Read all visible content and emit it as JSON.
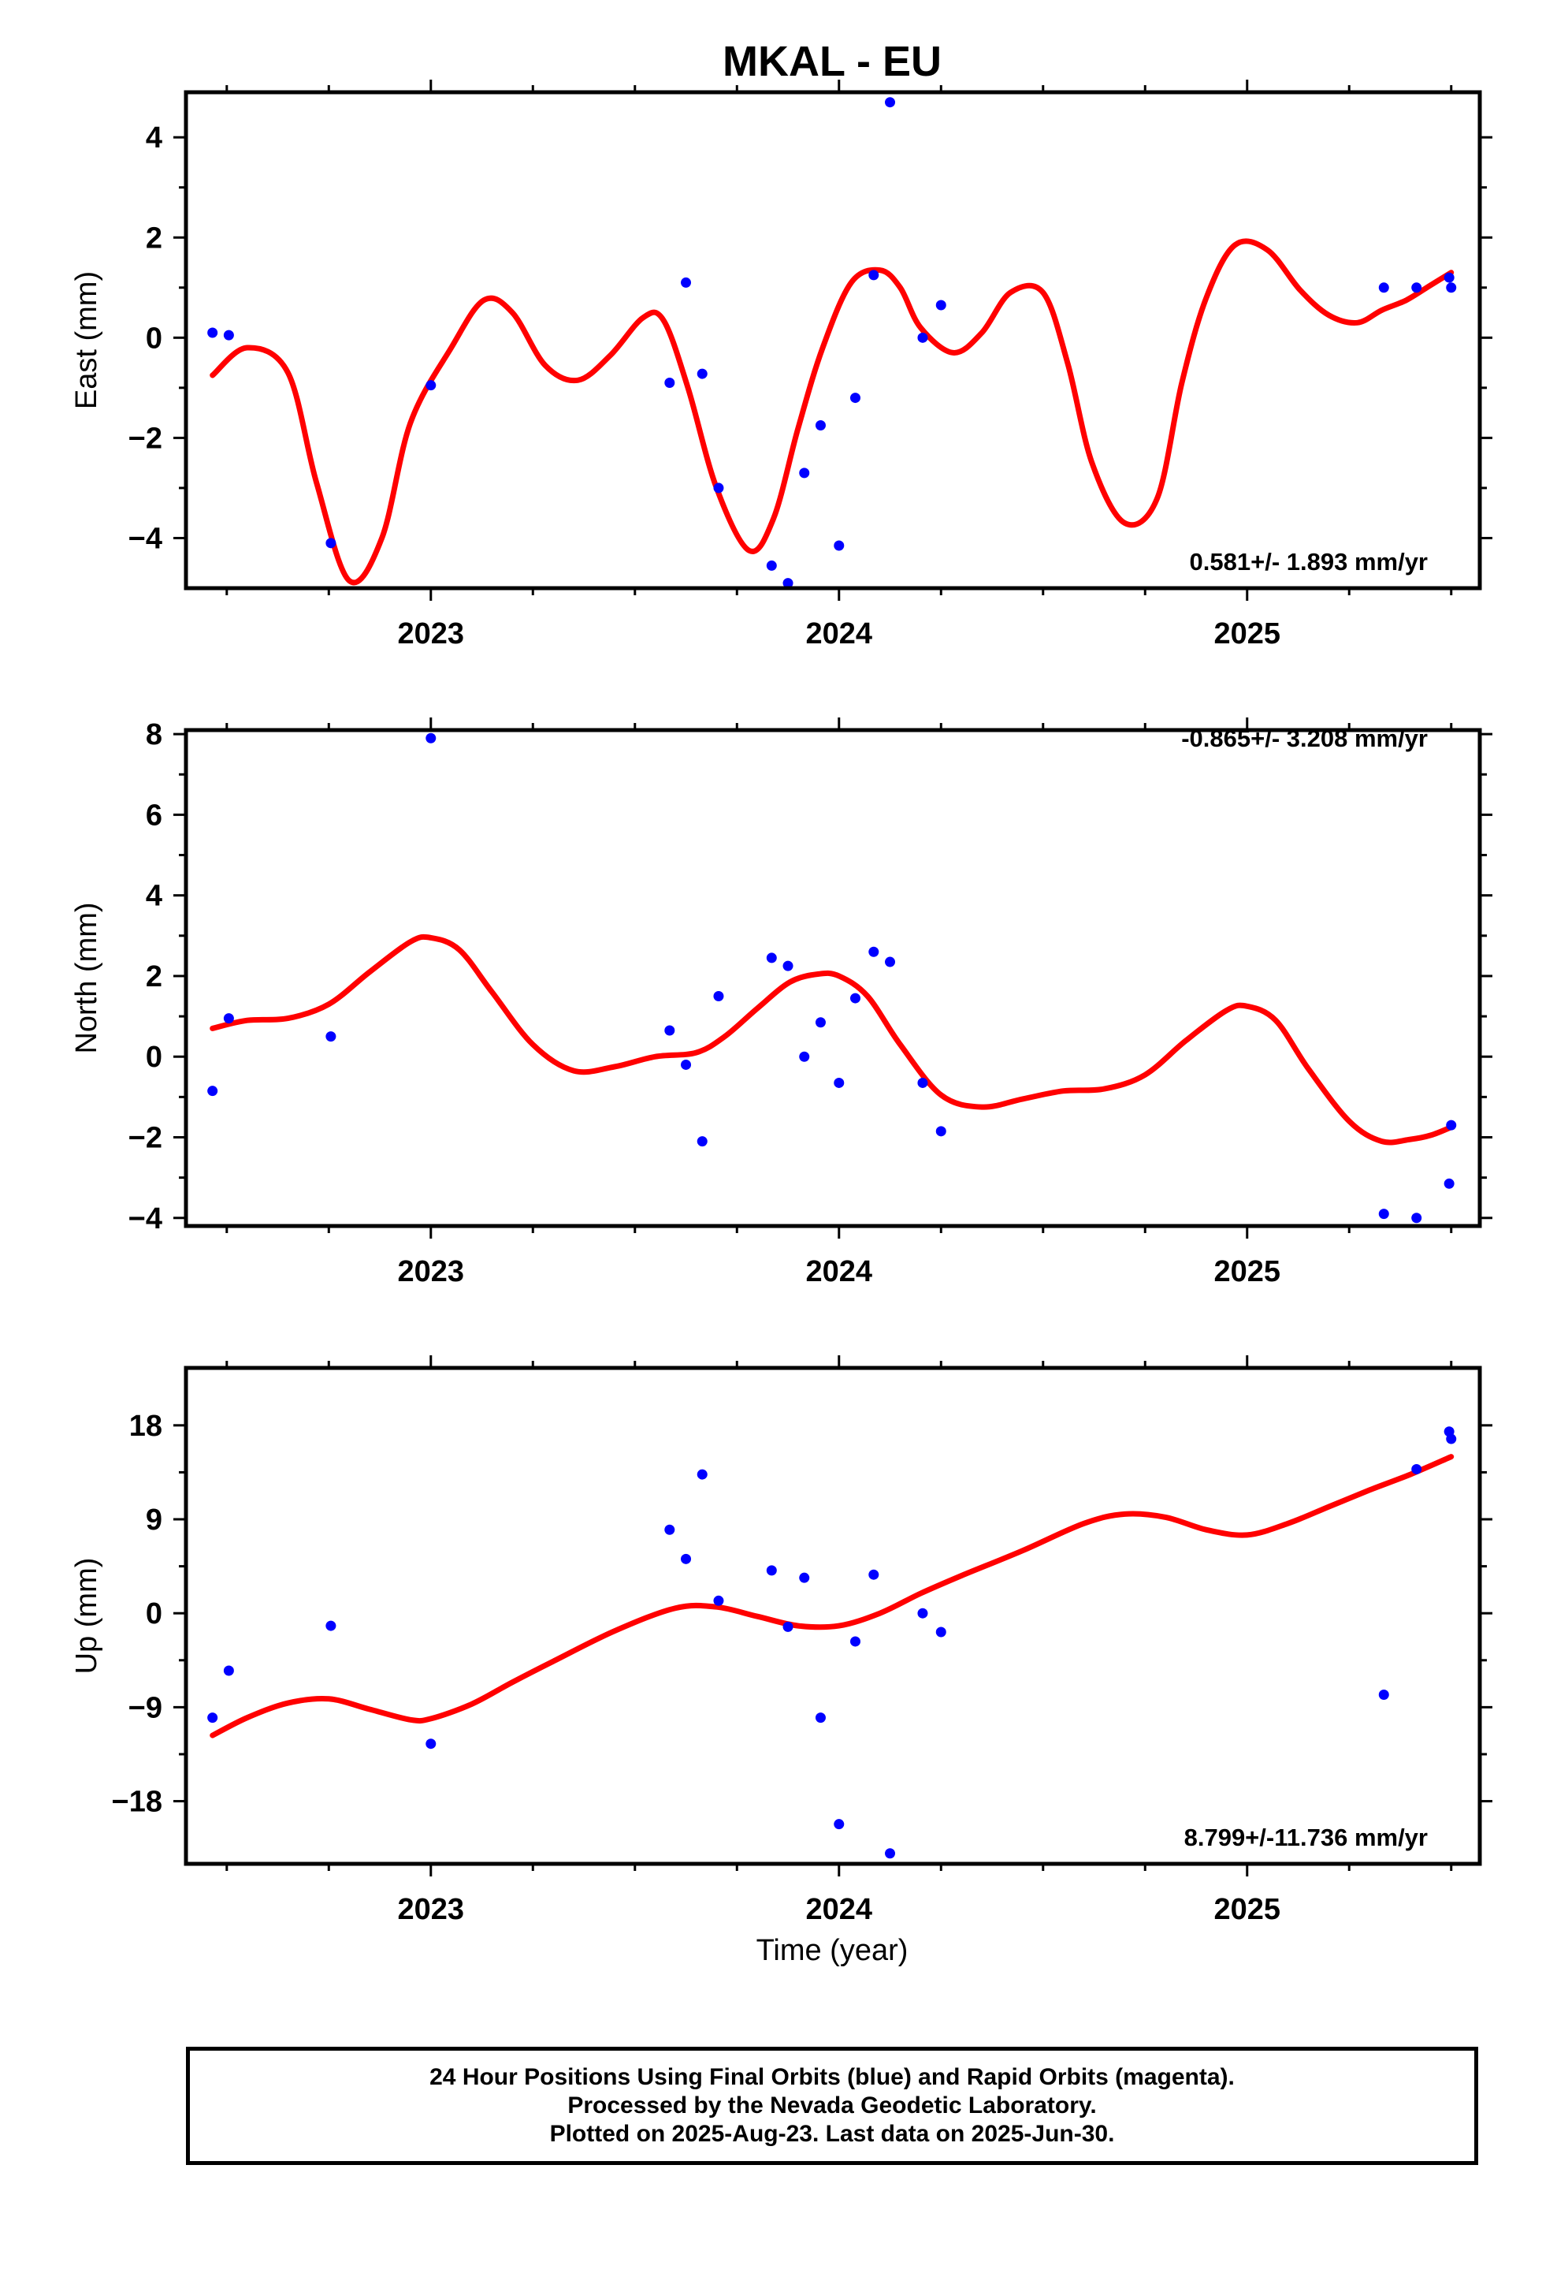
{
  "title": "MKAL - EU",
  "xlabel": "Time (year)",
  "footer": {
    "line1": "24 Hour Positions Using Final Orbits (blue) and Rapid Orbits (magenta).",
    "line2": "Processed by the Nevada Geodetic Laboratory.",
    "line3": "Plotted on 2025-Aug-23. Last data on 2025-Jun-30."
  },
  "colors": {
    "points": "#0000ff",
    "fit": "#ff0000",
    "frame": "#000000"
  },
  "chart_data": [
    {
      "type": "scatter",
      "ylabel": "East (mm)",
      "rate": "0.581+/- 1.893 mm/yr",
      "xlim": [
        2022.4,
        2025.57
      ],
      "ylim": [
        -5.0,
        4.9
      ],
      "yticks": [
        -4,
        -2,
        0,
        2,
        4
      ],
      "xticks": [
        2023,
        2024,
        2025
      ],
      "points": {
        "x": [
          2022.465,
          2022.505,
          2022.755,
          2023.0,
          2023.585,
          2023.625,
          2023.665,
          2023.705,
          2023.835,
          2023.875,
          2023.915,
          2023.955,
          2024.0,
          2024.04,
          2024.085,
          2024.125,
          2024.205,
          2024.25,
          2025.335,
          2025.415,
          2025.495,
          2025.5
        ],
        "y": [
          0.1,
          0.05,
          -4.1,
          -0.95,
          -0.9,
          1.1,
          -0.72,
          -3.0,
          -4.55,
          -4.9,
          -2.7,
          -1.75,
          -4.15,
          -1.2,
          1.25,
          4.7,
          0.0,
          0.65,
          1.0,
          1.0,
          1.2,
          1.0
        ]
      },
      "fit": {
        "x": [
          2022.465,
          2022.55,
          2022.65,
          2022.72,
          2022.8,
          2022.88,
          2022.95,
          2023.05,
          2023.13,
          2023.2,
          2023.28,
          2023.36,
          2023.44,
          2023.52,
          2023.57,
          2023.63,
          2023.7,
          2023.78,
          2023.84,
          2023.9,
          2023.96,
          2024.03,
          2024.1,
          2024.15,
          2024.2,
          2024.28,
          2024.35,
          2024.42,
          2024.5,
          2024.56,
          2024.62,
          2024.7,
          2024.78,
          2024.84,
          2024.9,
          2024.97,
          2025.05,
          2025.13,
          2025.2,
          2025.27,
          2025.33,
          2025.39,
          2025.45,
          2025.5
        ],
        "y": [
          -0.75,
          -0.2,
          -0.7,
          -2.9,
          -4.85,
          -4.0,
          -1.7,
          -0.2,
          0.75,
          0.5,
          -0.55,
          -0.85,
          -0.35,
          0.4,
          0.35,
          -1.0,
          -3.0,
          -4.25,
          -3.6,
          -1.8,
          -0.2,
          1.1,
          1.35,
          1.0,
          0.2,
          -0.3,
          0.1,
          0.9,
          0.9,
          -0.5,
          -2.5,
          -3.7,
          -3.2,
          -0.9,
          0.8,
          1.85,
          1.75,
          0.95,
          0.45,
          0.3,
          0.55,
          0.75,
          1.05,
          1.3
        ]
      }
    },
    {
      "type": "scatter",
      "ylabel": "North (mm)",
      "rate": "-0.865+/- 3.208 mm/yr",
      "xlim": [
        2022.4,
        2025.57
      ],
      "ylim": [
        -4.2,
        8.1
      ],
      "yticks": [
        -4,
        -2,
        0,
        2,
        4,
        6,
        8
      ],
      "xticks": [
        2023,
        2024,
        2025
      ],
      "points": {
        "x": [
          2022.465,
          2022.505,
          2022.755,
          2023.0,
          2023.585,
          2023.625,
          2023.665,
          2023.705,
          2023.835,
          2023.875,
          2023.915,
          2023.955,
          2024.0,
          2024.04,
          2024.085,
          2024.125,
          2024.205,
          2024.25,
          2025.335,
          2025.415,
          2025.495,
          2025.5
        ],
        "y": [
          -0.85,
          0.95,
          0.5,
          7.9,
          0.65,
          -0.2,
          -2.1,
          1.5,
          2.45,
          2.25,
          0.0,
          0.85,
          -0.65,
          1.45,
          2.6,
          2.35,
          -0.65,
          -1.85,
          -3.9,
          -4.0,
          -3.15,
          -1.7
        ]
      },
      "fit": {
        "x": [
          2022.465,
          2022.55,
          2022.65,
          2022.75,
          2022.85,
          2022.95,
          2023.0,
          2023.07,
          2023.15,
          2023.25,
          2023.35,
          2023.45,
          2023.55,
          2023.65,
          2023.72,
          2023.8,
          2023.88,
          2023.95,
          2024.0,
          2024.07,
          2024.15,
          2024.25,
          2024.35,
          2024.45,
          2024.55,
          2024.65,
          2024.75,
          2024.85,
          2024.95,
          2025.0,
          2025.07,
          2025.15,
          2025.25,
          2025.33,
          2025.4,
          2025.45,
          2025.5
        ],
        "y": [
          0.7,
          0.9,
          0.95,
          1.3,
          2.1,
          2.85,
          2.95,
          2.65,
          1.6,
          0.3,
          -0.35,
          -0.25,
          0.0,
          0.1,
          0.5,
          1.2,
          1.85,
          2.05,
          2.0,
          1.5,
          0.3,
          -0.95,
          -1.25,
          -1.05,
          -0.85,
          -0.8,
          -0.45,
          0.4,
          1.15,
          1.25,
          0.9,
          -0.3,
          -1.6,
          -2.1,
          -2.05,
          -1.95,
          -1.75
        ]
      }
    },
    {
      "type": "scatter",
      "ylabel": "Up (mm)",
      "rate": "8.799+/-11.736 mm/yr",
      "xlim": [
        2022.4,
        2025.57
      ],
      "ylim": [
        -24,
        23.5
      ],
      "yticks": [
        -18,
        -9,
        0,
        9,
        18
      ],
      "xticks": [
        2023,
        2024,
        2025
      ],
      "points": {
        "x": [
          2022.465,
          2022.505,
          2022.755,
          2023.0,
          2023.585,
          2023.625,
          2023.665,
          2023.705,
          2023.835,
          2023.875,
          2023.915,
          2023.955,
          2024.0,
          2024.04,
          2024.085,
          2024.125,
          2024.205,
          2024.25,
          2025.335,
          2025.415,
          2025.495,
          2025.5
        ],
        "y": [
          -10.0,
          -5.5,
          -1.2,
          -12.5,
          8.0,
          5.2,
          13.3,
          1.2,
          4.1,
          -1.3,
          3.4,
          -10.0,
          -20.2,
          -2.7,
          3.7,
          -23.0,
          0.0,
          -1.8,
          -7.8,
          13.8,
          17.4,
          16.7
        ]
      },
      "fit": {
        "x": [
          2022.465,
          2022.55,
          2022.65,
          2022.75,
          2022.85,
          2022.95,
          2023.0,
          2023.1,
          2023.2,
          2023.3,
          2023.45,
          2023.6,
          2023.7,
          2023.8,
          2023.9,
          2024.0,
          2024.1,
          2024.2,
          2024.3,
          2024.45,
          2024.6,
          2024.7,
          2024.8,
          2024.9,
          2025.0,
          2025.1,
          2025.2,
          2025.3,
          2025.4,
          2025.5
        ],
        "y": [
          -11.7,
          -10.0,
          -8.6,
          -8.2,
          -9.2,
          -10.2,
          -10.1,
          -8.7,
          -6.6,
          -4.6,
          -1.7,
          0.5,
          0.6,
          -0.3,
          -1.2,
          -1.2,
          0.0,
          1.9,
          3.6,
          6.0,
          8.6,
          9.5,
          9.2,
          8.0,
          7.5,
          8.6,
          10.2,
          11.8,
          13.3,
          15.0
        ]
      }
    }
  ]
}
